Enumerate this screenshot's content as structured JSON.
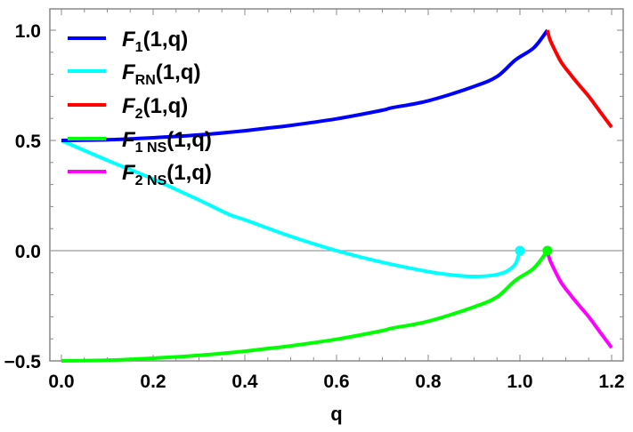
{
  "chart_data": {
    "type": "line",
    "title": "",
    "xlabel": "q",
    "ylabel": "",
    "xlim": [
      0.0,
      1.2
    ],
    "ylim": [
      -0.5,
      1.0
    ],
    "x_ticks": [
      "0.0",
      "0.2",
      "0.4",
      "0.6",
      "0.8",
      "1.0",
      "1.2"
    ],
    "y_ticks": [
      "-0.5",
      "0.0",
      "0.5",
      "1.0"
    ],
    "grid": false,
    "zero_line": true,
    "legend_position": "upper-left-inside",
    "series": [
      {
        "name": "F1(1,q)",
        "label_main": "F",
        "label_sub": "1",
        "label_args": "(1,q)",
        "color": "#0000ff",
        "x": [
          0.0,
          0.1,
          0.2,
          0.3,
          0.4,
          0.45,
          0.5,
          0.6,
          0.7,
          0.72,
          0.8,
          0.9,
          0.95,
          0.99,
          1.03,
          1.06
        ],
        "y": [
          0.5,
          0.503,
          0.512,
          0.525,
          0.544,
          0.556,
          0.568,
          0.598,
          0.637,
          0.648,
          0.68,
          0.745,
          0.79,
          0.865,
          0.92,
          1.0
        ]
      },
      {
        "name": "FRN(1,q)",
        "label_main": "F",
        "label_sub": "RN",
        "label_args": "(1,q)",
        "color": "#00ffff",
        "x": [
          0.0,
          0.1,
          0.2,
          0.31,
          0.365,
          0.4,
          0.5,
          0.6,
          0.7,
          0.8,
          0.85,
          0.895,
          0.94,
          0.97,
          0.99,
          1.0
        ],
        "y": [
          0.5,
          0.41,
          0.325,
          0.22,
          0.165,
          0.14,
          0.065,
          0.0,
          -0.053,
          -0.095,
          -0.11,
          -0.117,
          -0.112,
          -0.095,
          -0.06,
          0.0
        ],
        "endpoint_marker": {
          "x": 1.0,
          "y": 0.0
        }
      },
      {
        "name": "F2(1,q)",
        "label_main": "F",
        "label_sub": "2",
        "label_args": "(1,q)",
        "color": "#ff0000",
        "x": [
          1.06,
          1.065,
          1.075,
          1.09,
          1.11,
          1.128,
          1.15,
          1.175,
          1.2
        ],
        "y": [
          1.0,
          0.96,
          0.915,
          0.855,
          0.8,
          0.754,
          0.7,
          0.63,
          0.56
        ]
      },
      {
        "name": "F1NS(1,q)",
        "label_main": "F",
        "label_sub": "1 NS",
        "label_args": "(1,q)",
        "color": "#00ff00",
        "x": [
          0.0,
          0.1,
          0.2,
          0.3,
          0.4,
          0.45,
          0.5,
          0.6,
          0.7,
          0.72,
          0.8,
          0.9,
          0.95,
          0.99,
          1.03,
          1.06
        ],
        "y": [
          -0.5,
          -0.497,
          -0.488,
          -0.475,
          -0.456,
          -0.444,
          -0.432,
          -0.402,
          -0.363,
          -0.352,
          -0.32,
          -0.255,
          -0.21,
          -0.135,
          -0.08,
          0.0
        ],
        "endpoint_marker": {
          "x": 1.06,
          "y": 0.0
        }
      },
      {
        "name": "F2NS(1,q)",
        "label_main": "F",
        "label_sub": "2 NS",
        "label_args": "(1,q)",
        "color": "#ff00ff",
        "x": [
          1.06,
          1.065,
          1.075,
          1.09,
          1.11,
          1.128,
          1.15,
          1.175,
          1.2
        ],
        "y": [
          0.0,
          -0.04,
          -0.085,
          -0.145,
          -0.2,
          -0.246,
          -0.3,
          -0.37,
          -0.44
        ]
      }
    ]
  }
}
